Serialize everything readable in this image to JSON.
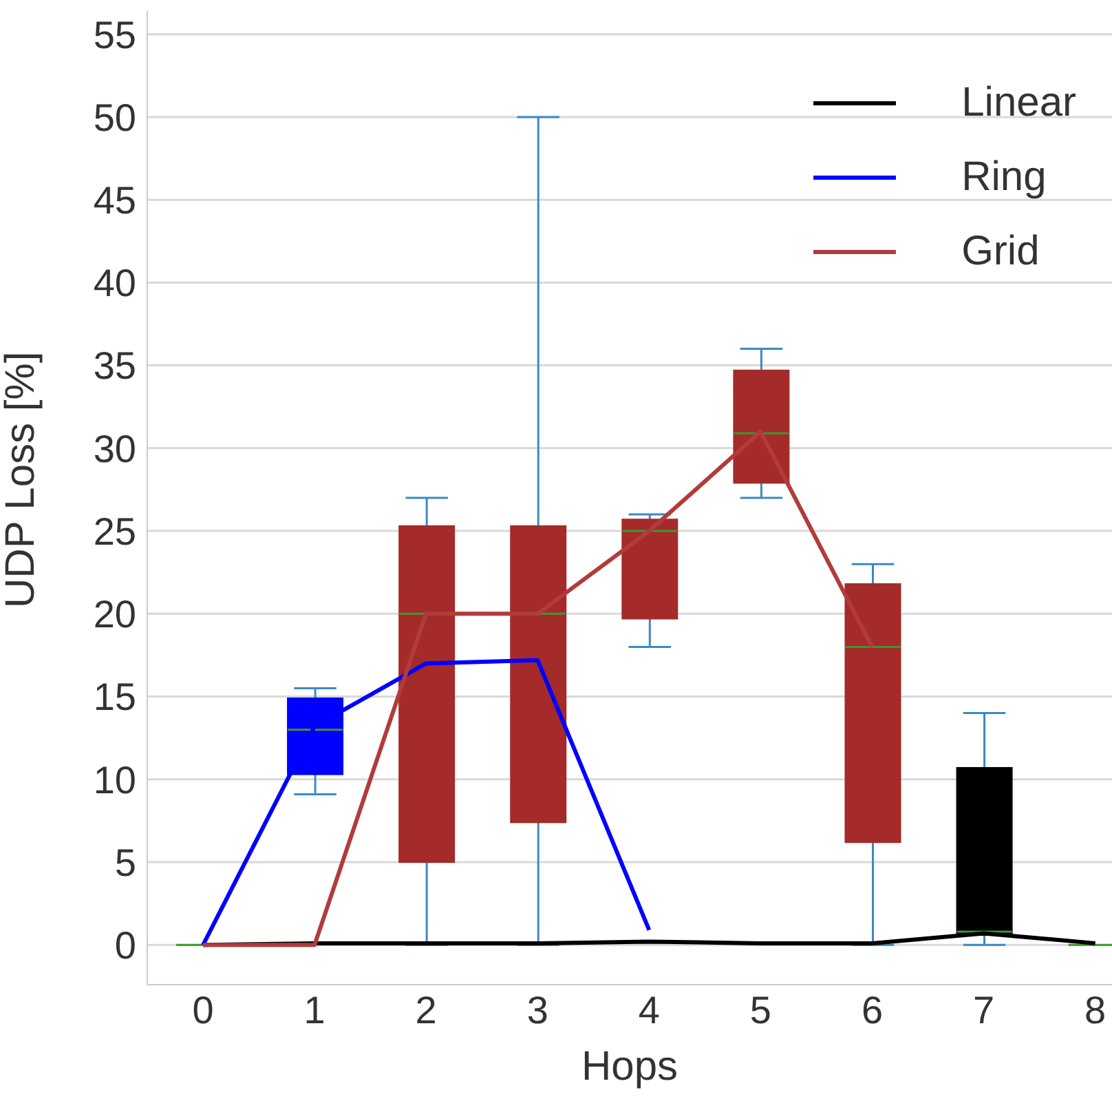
{
  "chart_data": {
    "type": "box",
    "xlabel": "Hops",
    "ylabel": "UDP Loss [%]",
    "x": [
      0,
      1,
      2,
      3,
      4,
      5,
      6,
      7,
      8
    ],
    "xlim": [
      -0.5,
      8.15
    ],
    "xticks": [
      0,
      1,
      2,
      3,
      4,
      5,
      6,
      7,
      8
    ],
    "ylim": [
      -2.4,
      56.4
    ],
    "yticks": [
      0,
      5,
      10,
      15,
      20,
      25,
      30,
      35,
      40,
      45,
      50,
      55
    ],
    "grid": "y",
    "legend": "top right",
    "boxes": [
      {
        "low": 0,
        "q1": 0,
        "median": 0,
        "q3": 0,
        "high": 0
      },
      {
        "low": 9.1,
        "q1": 10.3,
        "median": 13,
        "q3": 14.9,
        "high": 15.5
      },
      {
        "low": 0,
        "q1": 5,
        "median": 20,
        "q3": 25.3,
        "high": 27
      },
      {
        "low": 0,
        "q1": 7.4,
        "median": 20,
        "q3": 25.3,
        "high": 50
      },
      {
        "low": 18,
        "q1": 19.7,
        "median": 25,
        "q3": 25.7,
        "high": 26
      },
      {
        "low": 27,
        "q1": 27.9,
        "median": 30.9,
        "q3": 34.7,
        "high": 36
      },
      {
        "low": 0,
        "q1": 6.2,
        "median": 18,
        "q3": 21.8,
        "high": 23
      },
      {
        "low": 0,
        "q1": 0.6,
        "median": 0.8,
        "q3": 10.7,
        "high": 14
      },
      {
        "low": 0,
        "q1": 0,
        "median": 0,
        "q3": 0,
        "high": 0
      }
    ],
    "colors": [
      null,
      "#0000ff",
      "#a52a2a",
      "#a52a2a",
      "#a52a2a",
      "#a52a2a",
      "#a52a2a",
      "#000000",
      null
    ],
    "series": [
      {
        "name": "Linear",
        "type": "line",
        "color": "#000000",
        "values": [
          0,
          0.1,
          0.1,
          0.1,
          0.2,
          0.1,
          0.1,
          0.7,
          0.1
        ]
      },
      {
        "name": "Ring",
        "type": "line",
        "color": "#0000ff",
        "values": [
          0,
          13.2,
          17,
          17.2,
          0.9,
          null,
          null,
          null,
          null
        ]
      },
      {
        "name": "Grid",
        "type": "line",
        "color": "#b23b3b",
        "values": [
          0,
          0,
          20,
          20,
          25,
          31,
          18,
          null,
          null
        ]
      }
    ]
  }
}
